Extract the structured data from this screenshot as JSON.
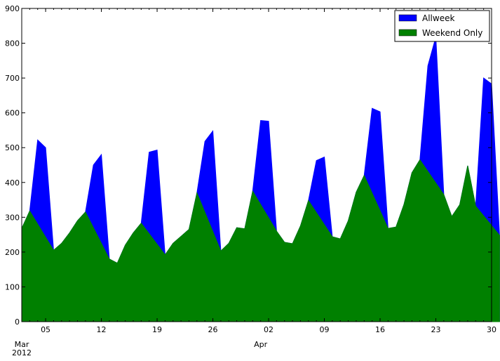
{
  "chart_data": {
    "type": "area",
    "x_start": "2012-03-02",
    "x_end": "2012-04-30",
    "ylim": [
      0,
      900
    ],
    "y_ticks": [
      0,
      100,
      200,
      300,
      400,
      500,
      600,
      700,
      800,
      900
    ],
    "x_ticks": [
      {
        "date": "2012-03-05",
        "label": "05"
      },
      {
        "date": "2012-03-12",
        "label": "12"
      },
      {
        "date": "2012-03-19",
        "label": "19"
      },
      {
        "date": "2012-03-26",
        "label": "26"
      },
      {
        "date": "2012-04-02",
        "label": "02"
      },
      {
        "date": "2012-04-09",
        "label": "09"
      },
      {
        "date": "2012-04-16",
        "label": "16"
      },
      {
        "date": "2012-04-23",
        "label": "23"
      },
      {
        "date": "2012-04-30",
        "label": "30"
      }
    ],
    "month_labels": [
      {
        "date": "2012-03-01",
        "label": "Mar",
        "year": "2012"
      },
      {
        "date": "2012-04-01",
        "label": "Apr",
        "year": ""
      }
    ],
    "legend_position": "upper-right",
    "series": [
      {
        "name": "Allweek",
        "color": "#0000ff",
        "values": [
          [
            1,
            268
          ],
          [
            2,
            318
          ],
          [
            3,
            522
          ],
          [
            4,
            500
          ],
          [
            5,
            205
          ],
          [
            6,
            225
          ],
          [
            7,
            255
          ],
          [
            8,
            290
          ],
          [
            9,
            315
          ],
          [
            10,
            450
          ],
          [
            11,
            480
          ],
          [
            12,
            180
          ],
          [
            13,
            168
          ],
          [
            14,
            220
          ],
          [
            15,
            255
          ],
          [
            16,
            283
          ],
          [
            17,
            487
          ],
          [
            18,
            493
          ],
          [
            19,
            192
          ],
          [
            20,
            225
          ],
          [
            21,
            245
          ],
          [
            22,
            265
          ],
          [
            23,
            370
          ],
          [
            24,
            518
          ],
          [
            25,
            548
          ],
          [
            26,
            203
          ],
          [
            27,
            225
          ],
          [
            28,
            270
          ],
          [
            29,
            267
          ],
          [
            30,
            375
          ],
          [
            31,
            578
          ],
          [
            32,
            576
          ],
          [
            33,
            260
          ],
          [
            34,
            228
          ],
          [
            35,
            224
          ],
          [
            36,
            275
          ],
          [
            37,
            348
          ],
          [
            38,
            463
          ],
          [
            39,
            473
          ],
          [
            40,
            244
          ],
          [
            41,
            238
          ],
          [
            42,
            290
          ],
          [
            43,
            372
          ],
          [
            44,
            420
          ],
          [
            45,
            613
          ],
          [
            46,
            603
          ],
          [
            47,
            268
          ],
          [
            48,
            272
          ],
          [
            49,
            337
          ],
          [
            50,
            428
          ],
          [
            51,
            465
          ],
          [
            52,
            735
          ],
          [
            53,
            818
          ],
          [
            54,
            365
          ],
          [
            55,
            302
          ],
          [
            56,
            336
          ],
          [
            57,
            448
          ],
          [
            58,
            332
          ],
          [
            59,
            700
          ],
          [
            60,
            683
          ],
          [
            61,
            248
          ]
        ]
      },
      {
        "name": "Weekend Only",
        "color": "#008000",
        "values": [
          [
            1,
            268
          ],
          [
            2,
            318
          ],
          [
            5,
            205
          ],
          [
            6,
            225
          ],
          [
            7,
            255
          ],
          [
            8,
            290
          ],
          [
            9,
            315
          ],
          [
            12,
            180
          ],
          [
            13,
            168
          ],
          [
            14,
            220
          ],
          [
            15,
            255
          ],
          [
            16,
            283
          ],
          [
            19,
            192
          ],
          [
            20,
            225
          ],
          [
            21,
            245
          ],
          [
            22,
            265
          ],
          [
            23,
            370
          ],
          [
            26,
            203
          ],
          [
            27,
            225
          ],
          [
            28,
            270
          ],
          [
            29,
            267
          ],
          [
            30,
            375
          ],
          [
            33,
            260
          ],
          [
            34,
            228
          ],
          [
            35,
            224
          ],
          [
            36,
            275
          ],
          [
            37,
            348
          ],
          [
            40,
            244
          ],
          [
            41,
            238
          ],
          [
            42,
            290
          ],
          [
            43,
            372
          ],
          [
            44,
            420
          ],
          [
            47,
            268
          ],
          [
            48,
            272
          ],
          [
            49,
            337
          ],
          [
            50,
            428
          ],
          [
            51,
            465
          ],
          [
            54,
            365
          ],
          [
            55,
            302
          ],
          [
            56,
            336
          ],
          [
            57,
            448
          ],
          [
            58,
            332
          ],
          [
            61,
            248
          ]
        ]
      }
    ]
  }
}
